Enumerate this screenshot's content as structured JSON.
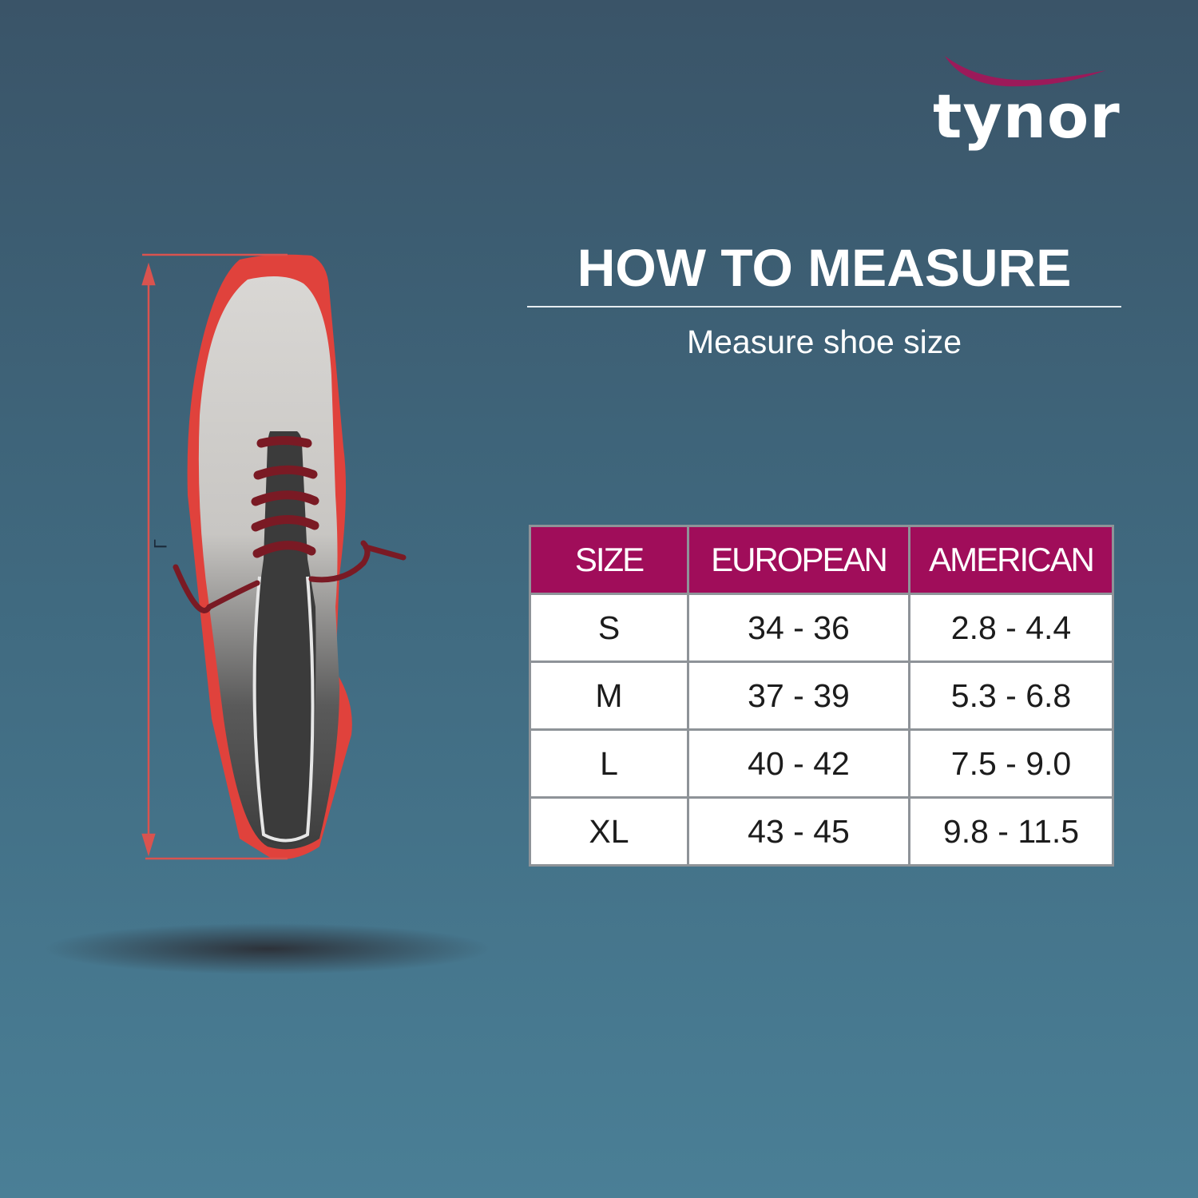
{
  "brand": {
    "name": "tynor",
    "accent_color": "#a00d5a"
  },
  "heading": {
    "title": "HOW TO MEASURE",
    "subtitle": "Measure shoe size"
  },
  "illustration": {
    "icon": "shoe-length-measurement",
    "length_label": "L"
  },
  "size_table": {
    "columns": [
      "SIZE",
      "EUROPEAN",
      "AMERICAN"
    ],
    "rows": [
      [
        "S",
        "34 - 36",
        "2.8 - 4.4"
      ],
      [
        "M",
        "37 - 39",
        "5.3 - 6.8"
      ],
      [
        "L",
        "40 - 42",
        "7.5 - 9.0"
      ],
      [
        "XL",
        "43 - 45",
        "9.8 - 11.5"
      ]
    ]
  }
}
